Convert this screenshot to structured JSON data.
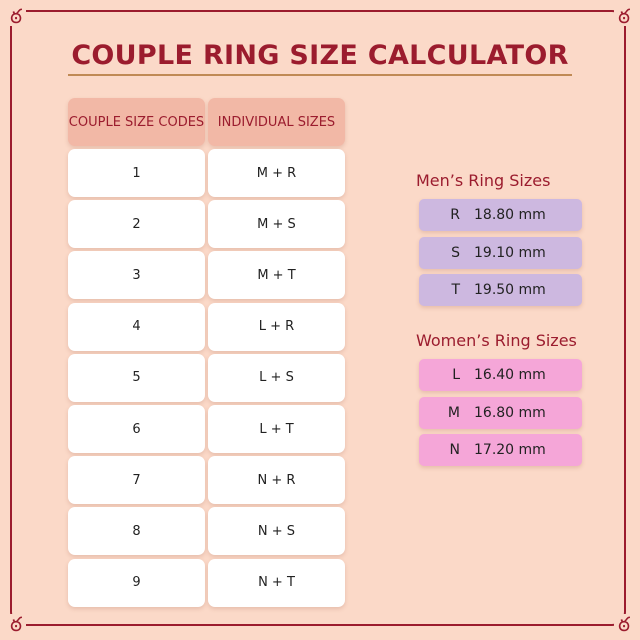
{
  "title": "COUPLE RING SIZE CALCULATOR",
  "table": {
    "headers": [
      "COUPLE SIZE CODES",
      "INDIVIDUAL SIZES"
    ],
    "rows": [
      [
        "1",
        "M + R"
      ],
      [
        "2",
        "M + S"
      ],
      [
        "3",
        "M + T"
      ],
      [
        "4",
        "L + R"
      ],
      [
        "5",
        "L + S"
      ],
      [
        "6",
        "L + T"
      ],
      [
        "7",
        "N + R"
      ],
      [
        "8",
        "N + S"
      ],
      [
        "9",
        "N + T"
      ]
    ]
  },
  "men": {
    "title": "Men’s Ring Sizes",
    "sizes": [
      [
        "R",
        "18.80 mm"
      ],
      [
        "S",
        "19.10 mm"
      ],
      [
        "T",
        "19.50 mm"
      ]
    ]
  },
  "women": {
    "title": "Women’s Ring Sizes",
    "sizes": [
      [
        "L",
        "16.40 mm"
      ],
      [
        "M",
        "16.80 mm"
      ],
      [
        "N",
        "17.20 mm"
      ]
    ]
  },
  "colors": {
    "background": "#fbd9c8",
    "accent": "#9b1c2e",
    "header": "#f2b8a6",
    "men": "#cdb8e0",
    "women": "#f5a6d8"
  }
}
